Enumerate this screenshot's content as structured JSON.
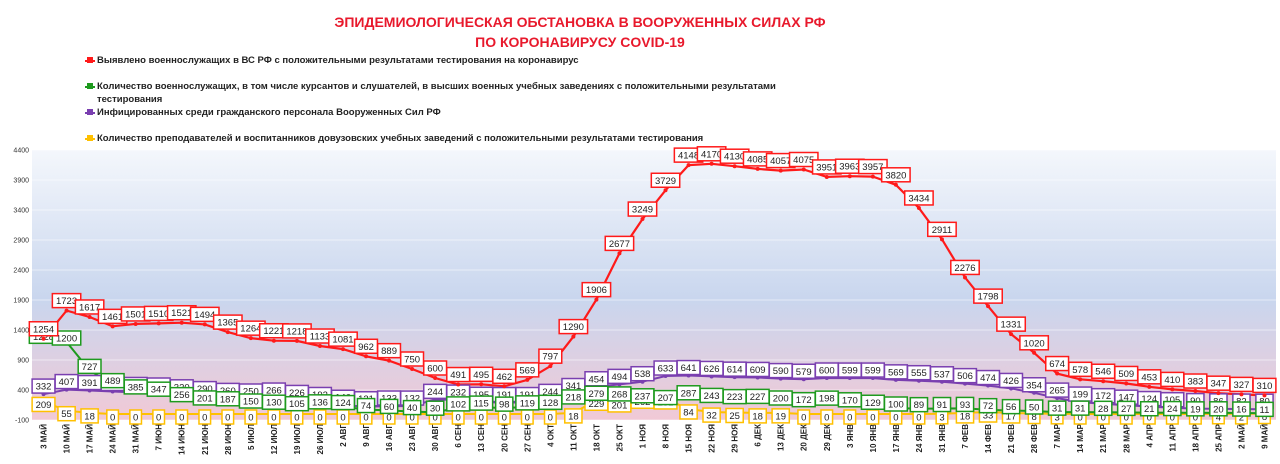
{
  "chart_data": {
    "type": "line",
    "title": "ЭПИДЕМИОЛОГИЧЕСКАЯ ОБСТАНОВКА В ВООРУЖЕННЫХ СИЛАХ РФ",
    "subtitle": "ПО КОРОНАВИРУСУ COVID-19",
    "categories": [
      "3 МАЙ",
      "10 МАЙ",
      "17 МАЙ",
      "24 МАЙ",
      "31 МАЙ",
      "7 ИЮН",
      "14 ИЮН",
      "21 ИЮН",
      "28 ИЮН",
      "5 ИЮЛ",
      "12 ИЮЛ",
      "19 ИЮЛ",
      "26 ИЮЛ",
      "2 АВГ",
      "9 АВГ",
      "16 АВГ",
      "23 АВГ",
      "30 АВГ",
      "6 СЕН",
      "13 СЕН",
      "20 СЕН",
      "27 СЕН",
      "4 ОКТ",
      "11 ОКТ",
      "18 ОКТ",
      "25 ОКТ",
      "1 НОЯ",
      "8 НОЯ",
      "15 НОЯ",
      "22 НОЯ",
      "29 НОЯ",
      "6 ДЕК",
      "13 ДЕК",
      "20 ДЕК",
      "29 ДЕК",
      "3 ЯНВ",
      "10 ЯНВ",
      "17 ЯНВ",
      "24 ЯНВ",
      "31 ЯНВ",
      "7 ФЕВ",
      "14 ФЕВ",
      "21 ФЕВ",
      "28 ФЕВ",
      "7 МАР",
      "14 МАР",
      "21 МАР",
      "28 МАР",
      "4 АПР",
      "11 АПР",
      "18 АПР",
      "25 АПР",
      "2 МАЙ",
      "9 МАЙ"
    ],
    "series": [
      {
        "name": "Выявлено военнослужащих в ВС РФ с положительными результатами тестирования на коронавирус",
        "color": "#ff1a1a",
        "values": [
          1254,
          1723,
          1617,
          1461,
          1501,
          1510,
          1521,
          1494,
          1365,
          1264,
          1221,
          1218,
          1133,
          1081,
          962,
          889,
          750,
          600,
          491,
          495,
          462,
          569,
          797,
          1290,
          1906,
          2677,
          3249,
          3729,
          4148,
          4170,
          4130,
          4085,
          4057,
          4075,
          3951,
          3963,
          3957,
          3820,
          3434,
          2911,
          2276,
          1798,
          1331,
          1020,
          674,
          578,
          546,
          509,
          453,
          410,
          383,
          347,
          327,
          310
        ]
      },
      {
        "name": "Количество военнослужащих, в том числе курсантов и слушателей, в высших военных учебных заведениях с положительными результатами тестирования",
        "color": "#1e9a1e",
        "values": [
          1228,
          1200,
          727,
          489,
          385,
          347,
          256,
          201,
          187,
          150,
          130,
          105,
          136,
          124,
          74,
          60,
          40,
          30,
          102,
          115,
          98,
          119,
          128,
          218,
          279,
          268,
          237,
          207,
          287,
          243,
          223,
          227,
          200,
          172,
          198,
          170,
          129,
          100,
          89,
          91,
          93,
          72,
          56,
          50,
          31,
          31,
          28,
          27,
          21,
          24,
          19,
          20,
          16,
          11
        ]
      },
      {
        "name": "Инфицированных среди гражданского персонала Вооруженных Сил РФ",
        "color": "#7a3fb0",
        "values": [
          332,
          407,
          391,
          375,
          359,
          350,
          320,
          290,
          260,
          250,
          266,
          226,
          192,
          146,
          121,
          133,
          132,
          244,
          232,
          195,
          191,
          191,
          244,
          341,
          454,
          494,
          538,
          633,
          641,
          626,
          614,
          609,
          590,
          579,
          600,
          599,
          599,
          569,
          555,
          537,
          506,
          474,
          426,
          354,
          265,
          199,
          172,
          147,
          124,
          105,
          90,
          86,
          82,
          80
        ]
      },
      {
        "name": "Количество преподавателей и воспитанников довузовских учебных заведений с положительными результатами тестирования",
        "color": "#ffc000",
        "values": [
          209,
          55,
          18,
          0,
          0,
          0,
          0,
          0,
          0,
          0,
          0,
          0,
          0,
          0,
          0,
          0,
          0,
          0,
          0,
          0,
          0,
          0,
          0,
          18,
          229,
          201,
          262,
          251,
          84,
          32,
          25,
          18,
          19,
          0,
          0,
          0,
          0,
          0,
          0,
          3,
          18,
          33,
          17,
          8,
          3,
          0,
          0,
          0,
          0,
          0,
          0,
          4,
          2,
          8
        ]
      }
    ],
    "ylim": [
      -100,
      4400
    ],
    "yticks": [
      -100,
      400,
      900,
      1400,
      1900,
      2400,
      2900,
      3400,
      3900,
      4400
    ]
  }
}
